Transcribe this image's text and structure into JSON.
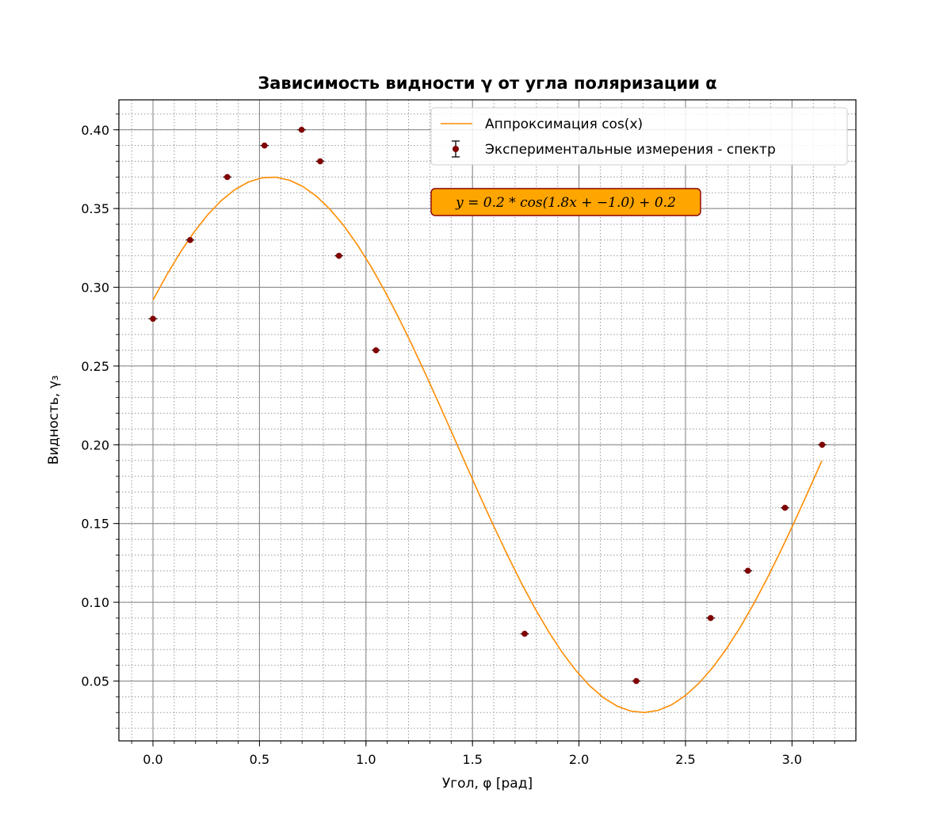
{
  "chart_data": {
    "type": "scatter",
    "title": "Зависимость видности γ от угла поляризации α",
    "xlabel": "Угол, φ [рад]",
    "ylabel": "Видность, γ₃",
    "xlim": [
      -0.16,
      3.3
    ],
    "ylim": [
      0.012,
      0.419
    ],
    "x_ticks": [
      0.0,
      0.5,
      1.0,
      1.5,
      2.0,
      2.5,
      3.0
    ],
    "x_tick_labels": [
      "0.0",
      "0.5",
      "1.0",
      "1.5",
      "2.0",
      "2.5",
      "3.0"
    ],
    "y_ticks": [
      0.05,
      0.1,
      0.15,
      0.2,
      0.25,
      0.3,
      0.35,
      0.4
    ],
    "y_tick_labels": [
      "0.05",
      "0.10",
      "0.15",
      "0.20",
      "0.25",
      "0.30",
      "0.35",
      "0.40"
    ],
    "grid": true,
    "minor_grid": true,
    "legend_position": "top-right",
    "series": [
      {
        "name": "Аппроксимация cos(x)",
        "kind": "line",
        "color": "#ff8c00",
        "function": {
          "amplitude": 0.17,
          "frequency": 1.8,
          "phase": -1.0,
          "offset": 0.2,
          "x_range": [
            0.0,
            3.14
          ]
        }
      },
      {
        "name": "Экспериментальные измерения - спектр",
        "kind": "scatter",
        "color": "#800000",
        "x_error": 0.02,
        "x": [
          0.0,
          0.1745,
          0.349,
          0.5236,
          0.698,
          0.785,
          0.873,
          1.047,
          1.745,
          2.269,
          2.618,
          2.793,
          2.967,
          3.1416
        ],
        "y": [
          0.28,
          0.33,
          0.37,
          0.39,
          0.4,
          0.38,
          0.32,
          0.26,
          0.08,
          0.05,
          0.09,
          0.12,
          0.16,
          0.2
        ]
      }
    ],
    "annotation": {
      "text": "y = 0.2 * cos(1.8x + −1.0) + 0.2",
      "background": "#ffa500",
      "border": "#8b0000"
    }
  }
}
